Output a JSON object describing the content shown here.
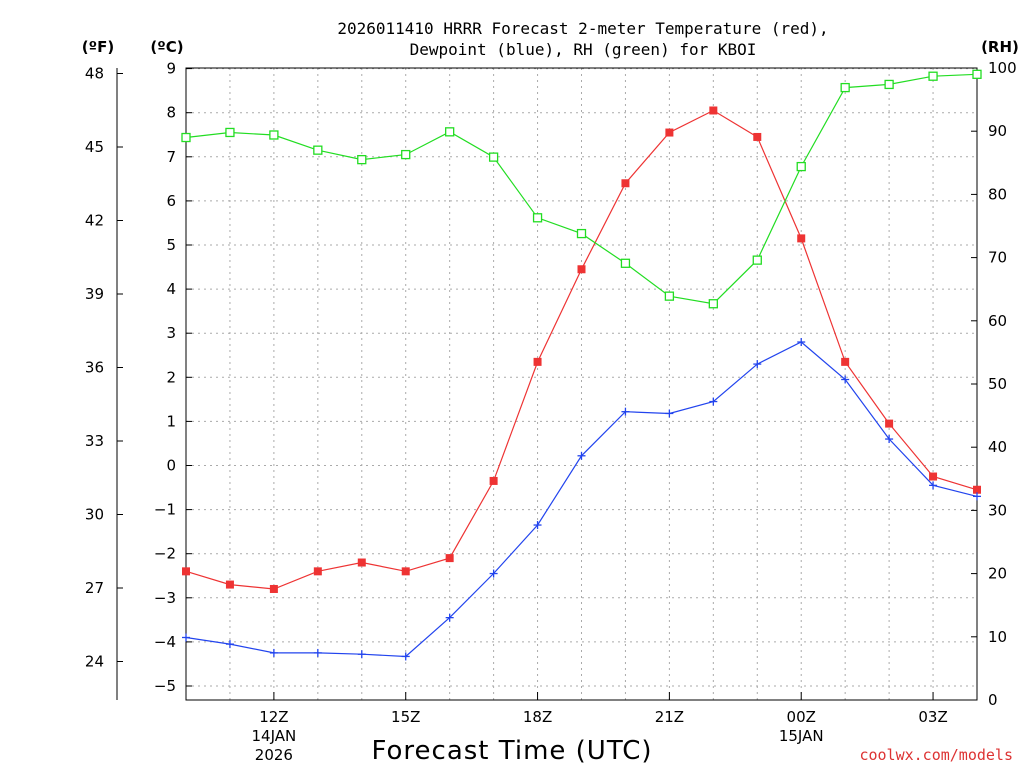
{
  "chart_data": {
    "type": "line",
    "title_line1": "2026011410 HRRR Forecast 2-meter Temperature (red),",
    "title_line2": "Dewpoint (blue), RH (green) for KBOI",
    "xlabel": "Forecast Time (UTC)",
    "credit": "coolwx.com/models",
    "units": {
      "fahrenheit": "(ºF)",
      "celsius": "(ºC)",
      "rh": "(RH)"
    },
    "x_hours": [
      10,
      11,
      12,
      13,
      14,
      15,
      16,
      17,
      18,
      19,
      20,
      21,
      22,
      23,
      24,
      25,
      26,
      27,
      28
    ],
    "x_ticks": [
      {
        "hour": 12,
        "label": "12Z",
        "sub1": "14JAN",
        "sub2": "2026"
      },
      {
        "hour": 15,
        "label": "15Z",
        "sub1": "",
        "sub2": ""
      },
      {
        "hour": 18,
        "label": "18Z",
        "sub1": "",
        "sub2": ""
      },
      {
        "hour": 21,
        "label": "21Z",
        "sub1": "",
        "sub2": ""
      },
      {
        "hour": 24,
        "label": "00Z",
        "sub1": "15JAN",
        "sub2": ""
      },
      {
        "hour": 27,
        "label": "03Z",
        "sub1": "",
        "sub2": ""
      }
    ],
    "xlim": [
      10,
      28
    ],
    "ylim_c": [
      -5.5,
      9.1
    ],
    "ylim_rh": [
      0,
      100
    ],
    "c_ticks": [
      "9",
      "8",
      "7",
      "6",
      "5",
      "4",
      "3",
      "2",
      "1",
      "0",
      "−1",
      "−2",
      "−3",
      "−4",
      "−5"
    ],
    "c_tick_values": [
      9,
      8,
      7,
      6,
      5,
      4,
      3,
      2,
      1,
      0,
      -1,
      -2,
      -3,
      -4,
      -5
    ],
    "f_ticks": [
      "48",
      "45",
      "42",
      "39",
      "36",
      "33",
      "30",
      "27",
      "24"
    ],
    "f_tick_values": [
      48,
      45,
      42,
      39,
      36,
      33,
      30,
      27,
      24
    ],
    "rh_ticks": [
      "100",
      "90",
      "80",
      "70",
      "60",
      "50",
      "40",
      "30",
      "20",
      "10",
      "0"
    ],
    "rh_tick_values": [
      100,
      90,
      80,
      70,
      60,
      50,
      40,
      30,
      20,
      10,
      0
    ],
    "series": [
      {
        "name": "Temperature",
        "color": "#ee3333",
        "marker": "filled-square",
        "axis": "c",
        "values": [
          -2.4,
          -2.7,
          -2.8,
          -2.4,
          -2.2,
          -2.4,
          -2.1,
          -0.35,
          2.35,
          4.45,
          6.4,
          7.55,
          8.05,
          7.45,
          5.15,
          2.35,
          0.95,
          -0.25,
          -0.55
        ]
      },
      {
        "name": "Dewpoint",
        "color": "#2244ee",
        "marker": "plus",
        "axis": "c",
        "values": [
          -3.9,
          -4.05,
          -4.25,
          -4.25,
          -4.28,
          -4.33,
          -3.45,
          -2.45,
          -1.35,
          0.22,
          1.22,
          1.18,
          1.45,
          2.3,
          2.8,
          1.95,
          0.6,
          -0.45,
          -0.7
        ]
      },
      {
        "name": "RH",
        "color": "#22dd22",
        "marker": "open-square",
        "axis": "rh",
        "values": [
          89,
          89.8,
          89.4,
          87,
          85.5,
          86.3,
          89.9,
          85.9,
          76.3,
          73.8,
          69.1,
          63.9,
          62.7,
          69.6,
          84.4,
          96.9,
          97.4,
          98.7,
          99
        ]
      }
    ]
  }
}
